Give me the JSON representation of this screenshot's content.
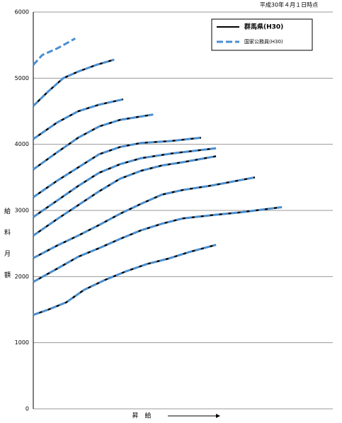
{
  "chart_data": {
    "type": "line",
    "title": "平成30年４月１日時点",
    "x_label": "昇　給",
    "y_label": "給料月額",
    "xlim": [
      0,
      100
    ],
    "ylim": [
      0,
      6000
    ],
    "yticks": [
      0,
      1000,
      2000,
      3000,
      4000,
      5000,
      6000
    ],
    "grid": true,
    "legend": "upper right",
    "series": [
      {
        "name": "群馬県(H30)",
        "color": "#000000",
        "style": "solid",
        "curves": [
          {
            "x": [
              0,
              5,
              11,
              17,
              24,
              31,
              38,
              45,
              52,
              61
            ],
            "values": [
              1420,
              1500,
              1610,
              1800,
              1950,
              2080,
              2190,
              2270,
              2370,
              2480
            ]
          },
          {
            "x": [
              0,
              8,
              15,
              22,
              29,
              36,
              43,
              50,
              60,
              69,
              83
            ],
            "values": [
              1920,
              2120,
              2300,
              2430,
              2570,
              2700,
              2800,
              2880,
              2930,
              2970,
              3050
            ]
          },
          {
            "x": [
              0,
              8,
              15,
              22,
              29,
              36,
              43,
              50,
              60,
              74
            ],
            "values": [
              2280,
              2470,
              2620,
              2780,
              2950,
              3100,
              3240,
              3310,
              3380,
              3500
            ]
          },
          {
            "x": [
              0,
              8,
              15,
              22,
              29,
              36,
              43,
              50,
              61
            ],
            "values": [
              2620,
              2870,
              3080,
              3290,
              3480,
              3600,
              3680,
              3730,
              3820
            ]
          },
          {
            "x": [
              0,
              8,
              15,
              22,
              29,
              36,
              46,
              61
            ],
            "values": [
              2900,
              3150,
              3370,
              3570,
              3700,
              3790,
              3860,
              3940
            ]
          },
          {
            "x": [
              0,
              8,
              15,
              22,
              29,
              36,
              46,
              56
            ],
            "values": [
              3200,
              3450,
              3650,
              3850,
              3960,
              4020,
              4050,
              4100
            ]
          },
          {
            "x": [
              0,
              8,
              15,
              22,
              29,
              40
            ],
            "values": [
              3620,
              3880,
              4100,
              4270,
              4370,
              4450
            ]
          },
          {
            "x": [
              0,
              8,
              15,
              22,
              30
            ],
            "values": [
              4080,
              4330,
              4500,
              4600,
              4680
            ]
          },
          {
            "x": [
              0,
              5,
              10,
              15,
              21,
              27
            ],
            "values": [
              4580,
              4800,
              5000,
              5100,
              5200,
              5280
            ]
          }
        ]
      },
      {
        "name": "国家公務員(H30)",
        "color": "#4a8fd0",
        "style": "dashed",
        "curves": [
          {
            "x": [
              0,
              5,
              11,
              17,
              24,
              31,
              38,
              45,
              52,
              61
            ],
            "values": [
              1420,
              1500,
              1610,
              1800,
              1950,
              2080,
              2190,
              2270,
              2370,
              2480
            ]
          },
          {
            "x": [
              0,
              8,
              15,
              22,
              29,
              36,
              43,
              50,
              60,
              69,
              83
            ],
            "values": [
              1920,
              2120,
              2300,
              2430,
              2570,
              2700,
              2800,
              2880,
              2930,
              2970,
              3050
            ]
          },
          {
            "x": [
              0,
              8,
              15,
              22,
              29,
              36,
              43,
              50,
              60,
              74
            ],
            "values": [
              2280,
              2470,
              2620,
              2780,
              2950,
              3100,
              3240,
              3310,
              3380,
              3500
            ]
          },
          {
            "x": [
              0,
              8,
              15,
              22,
              29,
              36,
              43,
              50,
              61
            ],
            "values": [
              2620,
              2870,
              3080,
              3290,
              3480,
              3600,
              3680,
              3730,
              3820
            ]
          },
          {
            "x": [
              0,
              8,
              15,
              22,
              29,
              36,
              46,
              61
            ],
            "values": [
              2900,
              3150,
              3370,
              3570,
              3700,
              3790,
              3860,
              3940
            ]
          },
          {
            "x": [
              0,
              8,
              15,
              22,
              29,
              36,
              46,
              56
            ],
            "values": [
              3200,
              3450,
              3650,
              3850,
              3960,
              4020,
              4050,
              4100
            ]
          },
          {
            "x": [
              0,
              8,
              15,
              22,
              29,
              40
            ],
            "values": [
              3620,
              3880,
              4100,
              4270,
              4370,
              4450
            ]
          },
          {
            "x": [
              0,
              8,
              15,
              22,
              30
            ],
            "values": [
              4080,
              4330,
              4500,
              4600,
              4680
            ]
          },
          {
            "x": [
              0,
              5,
              10,
              15,
              21,
              27
            ],
            "values": [
              4580,
              4800,
              5000,
              5100,
              5200,
              5280
            ]
          },
          {
            "x": [
              0,
              3,
              8,
              14
            ],
            "values": [
              5200,
              5350,
              5450,
              5600
            ]
          }
        ]
      }
    ]
  }
}
